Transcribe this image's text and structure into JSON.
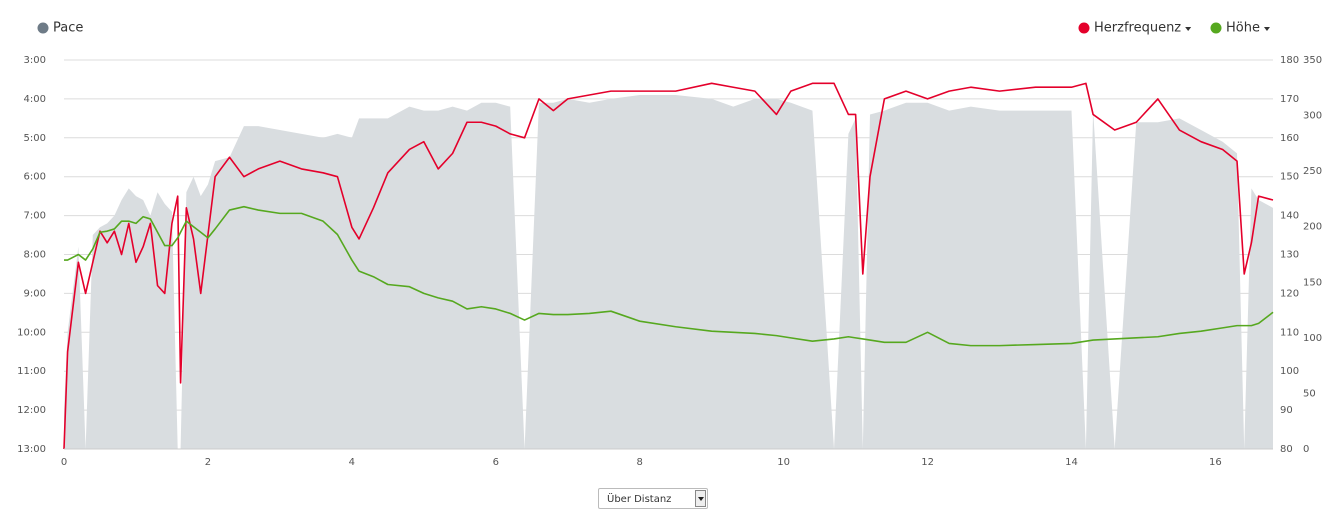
{
  "chart_data": {
    "type": "line",
    "legend": "top",
    "dropdown": "Über Distanz",
    "xlim": [
      0,
      16.8
    ],
    "xticks": [
      0,
      2,
      4,
      6,
      8,
      10,
      12,
      14,
      16
    ],
    "ylim": [
      13,
      3
    ],
    "yticks": [
      {
        "value": 3,
        "label": "3:00"
      },
      {
        "value": 4,
        "label": "4:00"
      },
      {
        "value": 5,
        "label": "5:00"
      },
      {
        "value": 6,
        "label": "6:00"
      },
      {
        "value": 7,
        "label": "7:00"
      },
      {
        "value": 8,
        "label": "8:00"
      },
      {
        "value": 9,
        "label": "9:00"
      },
      {
        "value": 10,
        "label": "10:00"
      },
      {
        "value": 11,
        "label": "11:00"
      },
      {
        "value": 12,
        "label": "12:00"
      },
      {
        "value": 13,
        "label": "13:00"
      }
    ],
    "y2lim": [
      80,
      180
    ],
    "y2ticks": [
      80,
      90,
      100,
      110,
      120,
      130,
      140,
      150,
      160,
      170,
      180
    ],
    "y3lim": [
      0,
      350
    ],
    "y3ticks": [
      0,
      50,
      100,
      150,
      200,
      250,
      300,
      350
    ],
    "grid": true,
    "x": [
      0,
      0.05,
      0.2,
      0.3,
      0.4,
      0.5,
      0.6,
      0.7,
      0.8,
      0.9,
      1.0,
      1.1,
      1.2,
      1.3,
      1.4,
      1.5,
      1.58,
      1.62,
      1.7,
      1.8,
      1.9,
      2.0,
      2.1,
      2.3,
      2.5,
      2.7,
      3.0,
      3.3,
      3.6,
      3.8,
      4.0,
      4.1,
      4.3,
      4.5,
      4.8,
      5.0,
      5.2,
      5.4,
      5.6,
      5.8,
      6.0,
      6.2,
      6.4,
      6.6,
      6.8,
      7.0,
      7.3,
      7.6,
      8.0,
      8.5,
      9.0,
      9.3,
      9.6,
      9.9,
      10.1,
      10.4,
      10.7,
      10.9,
      11.0,
      11.1,
      11.2,
      11.4,
      11.7,
      12.0,
      12.3,
      12.6,
      13.0,
      13.5,
      14.0,
      14.2,
      14.3,
      14.6,
      14.9,
      15.2,
      15.5,
      15.8,
      16.1,
      16.3,
      16.4,
      16.5,
      16.6,
      16.8
    ],
    "series": [
      {
        "name": "Pace",
        "type": "area",
        "axis": "y",
        "color": "#6e7b87",
        "area_color": "#d9dde0",
        "values": [
          12,
          10,
          7.8,
          13,
          7.5,
          7.3,
          7.2,
          7.0,
          6.6,
          6.3,
          6.5,
          6.6,
          7.0,
          6.4,
          6.7,
          6.9,
          13,
          13,
          6.4,
          6.0,
          6.5,
          6.2,
          5.6,
          5.5,
          4.7,
          4.7,
          4.8,
          4.9,
          5.0,
          4.9,
          5.0,
          4.5,
          4.5,
          4.5,
          4.2,
          4.3,
          4.3,
          4.2,
          4.3,
          4.1,
          4.1,
          4.2,
          13,
          4.1,
          4.1,
          4.0,
          4.1,
          4.0,
          3.9,
          3.9,
          4.0,
          4.2,
          4.0,
          4.0,
          4.1,
          4.3,
          13,
          4.9,
          4.5,
          13,
          4.4,
          4.3,
          4.1,
          4.1,
          4.3,
          4.2,
          4.3,
          4.3,
          4.3,
          13,
          4.3,
          13,
          4.6,
          4.6,
          4.5,
          4.8,
          5.1,
          5.4,
          13,
          6.3,
          6.6,
          6.8
        ]
      },
      {
        "name": "Herzfrequenz",
        "type": "line",
        "axis": "y2",
        "color": "#e4002b",
        "values": [
          80,
          105,
          128,
          120,
          128,
          136,
          133,
          136,
          130,
          138,
          128,
          132,
          138,
          122,
          120,
          138,
          145,
          97,
          142,
          134,
          120,
          135,
          150,
          155,
          150,
          152,
          154,
          152,
          151,
          150,
          137,
          134,
          142,
          151,
          157,
          159,
          152,
          156,
          164,
          164,
          163,
          161,
          160,
          170,
          167,
          170,
          171,
          172,
          172,
          172,
          174,
          173,
          172,
          166,
          172,
          174,
          174,
          166,
          166,
          125,
          150,
          170,
          172,
          170,
          172,
          173,
          172,
          173,
          173,
          174,
          166,
          162,
          164,
          170,
          162,
          159,
          157,
          154,
          125,
          133,
          145,
          144
        ]
      },
      {
        "name": "Höhe",
        "type": "line",
        "axis": "y3",
        "color": "#56a81f",
        "values": [
          170,
          170,
          175,
          170,
          180,
          195,
          196,
          198,
          205,
          205,
          203,
          209,
          207,
          195,
          183,
          183,
          190,
          195,
          205,
          200,
          195,
          190,
          198,
          215,
          218,
          215,
          212,
          212,
          205,
          193,
          170,
          160,
          155,
          148,
          146,
          140,
          136,
          133,
          126,
          128,
          126,
          122,
          116,
          122,
          121,
          121,
          122,
          124,
          115,
          110,
          106,
          105,
          104,
          102,
          100,
          97,
          99,
          101,
          100,
          99,
          98,
          96,
          96,
          105,
          95,
          93,
          93,
          94,
          95,
          97,
          98,
          99,
          100,
          101,
          104,
          106,
          109,
          111,
          111,
          111,
          113,
          123
        ]
      }
    ]
  }
}
